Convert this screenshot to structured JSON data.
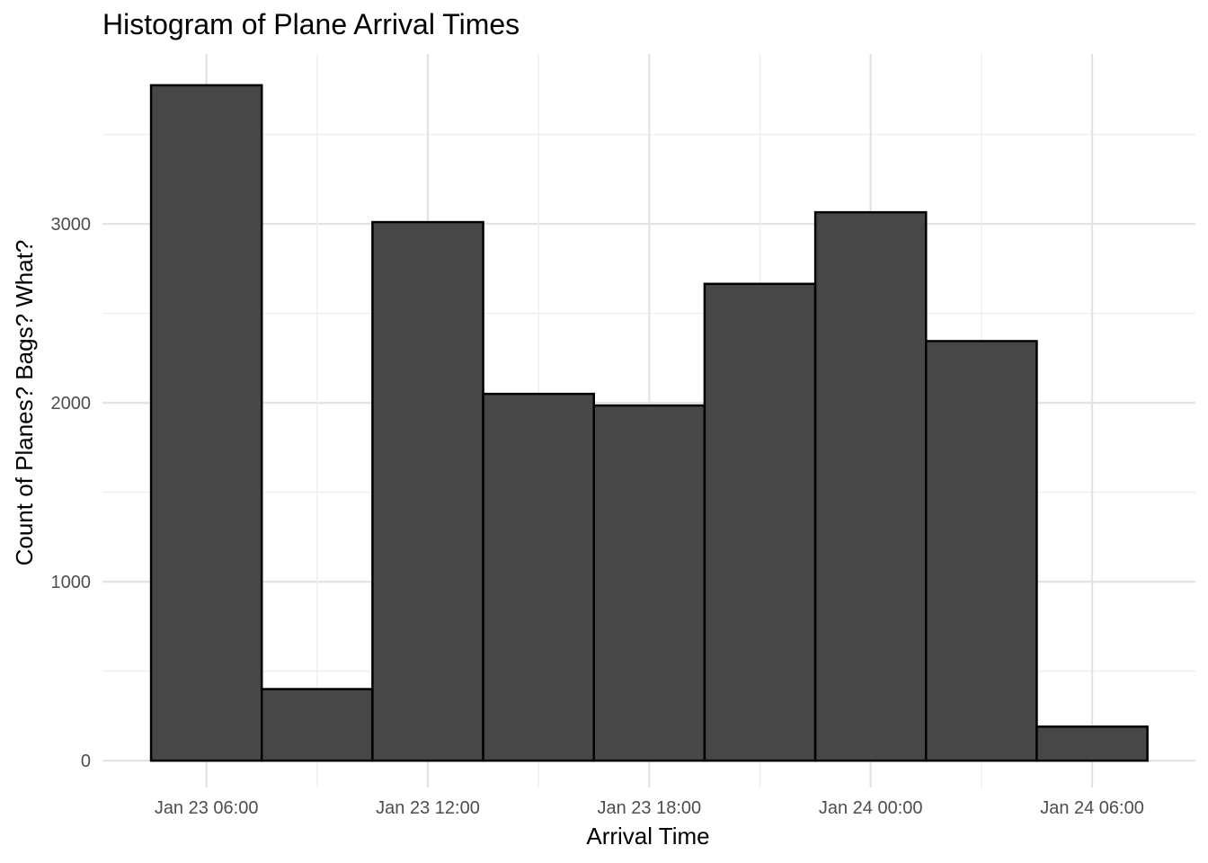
{
  "chart_data": {
    "type": "bar",
    "title": "Histogram of Plane Arrival Times",
    "xlabel": "Arrival Time",
    "ylabel": "Count of Planes? Bags? What?",
    "bar_color": "#474747",
    "bar_outline": "#000000",
    "grid": true,
    "x_tick_labels": [
      "Jan 23 06:00",
      "Jan 23 12:00",
      "Jan 23 18:00",
      "Jan 24 00:00",
      "Jan 24 06:00"
    ],
    "y_tick_labels": [
      "0",
      "1000",
      "2000",
      "3000"
    ],
    "y_ticks": [
      0,
      1000,
      2000,
      3000
    ],
    "ylim": [
      -150,
      3950
    ],
    "xlim": [
      "Jan 23 03:11",
      "Jan 24 08:48"
    ],
    "x_ticks": [
      "Jan 23 06:00",
      "Jan 23 12:00",
      "Jan 23 18:00",
      "Jan 24 00:00",
      "Jan 24 06:00"
    ],
    "bins": [
      {
        "start": "Jan 23 04:30",
        "end": "Jan 23 07:30",
        "value": 3775
      },
      {
        "start": "Jan 23 07:30",
        "end": "Jan 23 10:30",
        "value": 400
      },
      {
        "start": "Jan 23 10:30",
        "end": "Jan 23 13:30",
        "value": 3010
      },
      {
        "start": "Jan 23 13:30",
        "end": "Jan 23 16:30",
        "value": 2050
      },
      {
        "start": "Jan 23 16:30",
        "end": "Jan 23 19:30",
        "value": 1985
      },
      {
        "start": "Jan 23 19:30",
        "end": "Jan 23 22:30",
        "value": 2665
      },
      {
        "start": "Jan 23 22:30",
        "end": "Jan 24 01:30",
        "value": 3065
      },
      {
        "start": "Jan 24 01:30",
        "end": "Jan 24 04:30",
        "value": 2345
      },
      {
        "start": "Jan 24 04:30",
        "end": "Jan 24 07:30",
        "value": 190
      }
    ]
  }
}
